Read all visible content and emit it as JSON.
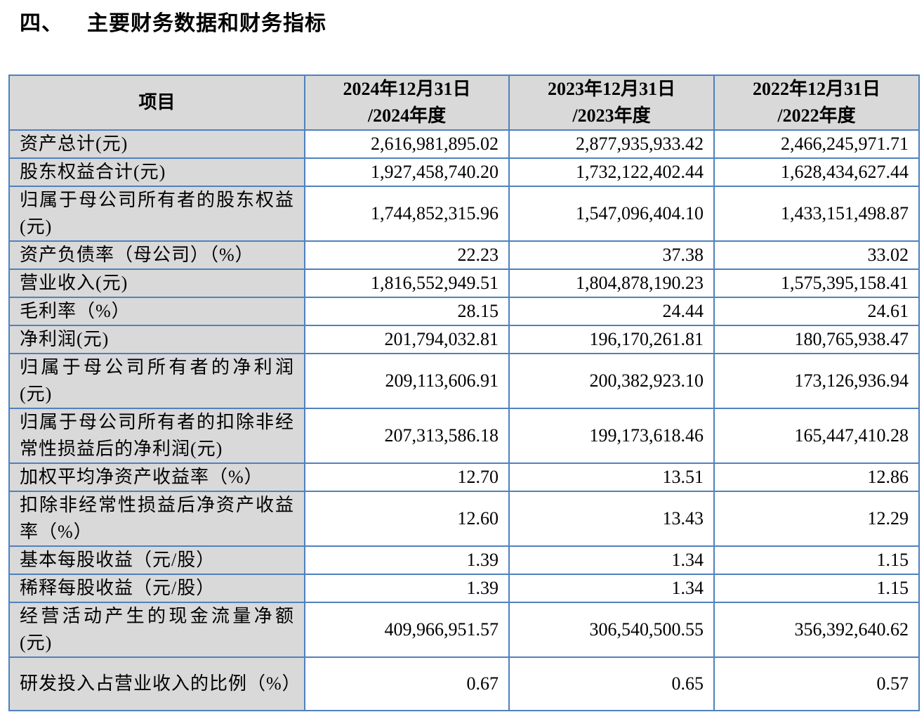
{
  "section": {
    "number": "四、",
    "title": "主要财务数据和财务指标"
  },
  "table": {
    "headers": [
      {
        "line1": "项目",
        "line2": ""
      },
      {
        "line1": "2024年12月31日",
        "line2": "/2024年度"
      },
      {
        "line1": "2023年12月31日",
        "line2": "/2023年度"
      },
      {
        "line1": "2022年12月31日",
        "line2": "/2022年度"
      }
    ],
    "rows": [
      {
        "label": "资产总计(元)",
        "values": [
          "2,616,981,895.02",
          "2,877,935,933.42",
          "2,466,245,971.71"
        ]
      },
      {
        "label": "股东权益合计(元)",
        "values": [
          "1,927,458,740.20",
          "1,732,122,402.44",
          "1,628,434,627.44"
        ]
      },
      {
        "label": "归属于母公司所有者的股东权益(元)",
        "values": [
          "1,744,852,315.96",
          "1,547,096,404.10",
          "1,433,151,498.87"
        ]
      },
      {
        "label": "资产负债率（母公司）（%）",
        "values": [
          "22.23",
          "37.38",
          "33.02"
        ]
      },
      {
        "label": "营业收入(元)",
        "values": [
          "1,816,552,949.51",
          "1,804,878,190.23",
          "1,575,395,158.41"
        ]
      },
      {
        "label": "毛利率（%）",
        "values": [
          "28.15",
          "24.44",
          "24.61"
        ]
      },
      {
        "label": "净利润(元)",
        "values": [
          "201,794,032.81",
          "196,170,261.81",
          "180,765,938.47"
        ]
      },
      {
        "label": "归属于母公司所有者的净利润(元)",
        "values": [
          "209,113,606.91",
          "200,382,923.10",
          "173,126,936.94"
        ]
      },
      {
        "label": "归属于母公司所有者的扣除非经常性损益后的净利润(元)",
        "values": [
          "207,313,586.18",
          "199,173,618.46",
          "165,447,410.28"
        ]
      },
      {
        "label": "加权平均净资产收益率（%）",
        "values": [
          "12.70",
          "13.51",
          "12.86"
        ]
      },
      {
        "label": "扣除非经常性损益后净资产收益率（%）",
        "values": [
          "12.60",
          "13.43",
          "12.29"
        ]
      },
      {
        "label": "基本每股收益（元/股）",
        "values": [
          "1.39",
          "1.34",
          "1.15"
        ]
      },
      {
        "label": "稀释每股收益（元/股）",
        "values": [
          "1.39",
          "1.34",
          "1.15"
        ]
      },
      {
        "label": "经营活动产生的现金流量净额(元)",
        "values": [
          "409,966,951.57",
          "306,540,500.55",
          "356,392,640.62"
        ]
      },
      {
        "label": "研发投入占营业收入的比例（%）",
        "values": [
          "0.67",
          "0.65",
          "0.57"
        ]
      }
    ]
  },
  "colors": {
    "border": "#4f81bd",
    "label_bg": "#d9d9d9"
  }
}
